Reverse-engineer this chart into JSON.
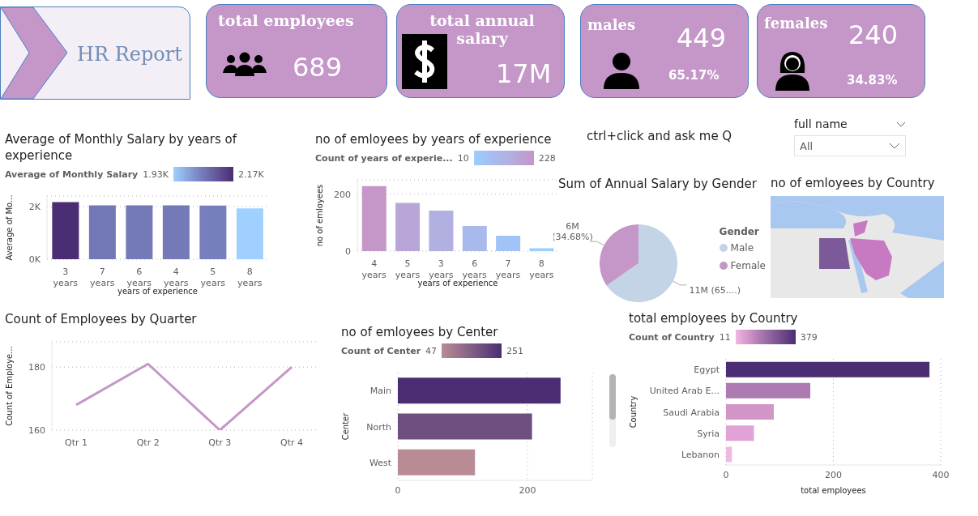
{
  "chart_data": [
    {
      "type": "other",
      "title": "HR Report",
      "annotations": [
        "total employees",
        "689",
        "total annual salary",
        "17M",
        "males",
        "449",
        "65.17%",
        "females",
        "240",
        "34.83%"
      ]
    },
    {
      "type": "bar",
      "title": "Average of Monthly Salary by years of experience",
      "categories": [
        "3 years",
        "7 years",
        "6 years",
        "4 years",
        "5 years",
        "8 years"
      ],
      "values": [
        2170,
        2050,
        2050,
        2050,
        2040,
        1930
      ],
      "colors": [
        "#4b2d73",
        "#7278b6",
        "#7479b8",
        "#7479b8",
        "#767fbb",
        "#9fd0ff"
      ],
      "xlabel": "years of experience",
      "ylabel": "Average of Mo...",
      "ylim": [
        0,
        2400
      ],
      "yticks": [
        {
          "value": 0,
          "label": "0K"
        },
        {
          "value": 2000,
          "label": "2K"
        }
      ],
      "grid": "y",
      "clabel": "Average of Monthly Salary",
      "annotations": [
        "1.93K",
        "2.17K"
      ]
    },
    {
      "type": "bar",
      "title": "no of emloyees by years of experience",
      "categories": [
        "4 years",
        "5 years",
        "3 years",
        "6 years",
        "7 years",
        "8 years"
      ],
      "values": [
        228,
        169,
        142,
        88,
        54,
        10
      ],
      "colors": [
        "#c497c8",
        "#b9a6d8",
        "#b1b0e0",
        "#aab9ec",
        "#a2c3f5",
        "#9ccefe"
      ],
      "xlabel": "years of experience",
      "ylabel": "no of emloyees",
      "ylim": [
        0,
        250
      ],
      "yticks": [
        0,
        200
      ],
      "grid": "y",
      "clabel": "Count of years of experie...",
      "annotations": [
        "10",
        "228"
      ]
    },
    {
      "type": "other",
      "title": "ctrl+click and ask me Q"
    },
    {
      "type": "other",
      "title": "full name",
      "annotations": [
        "All"
      ]
    },
    {
      "type": "pie",
      "title": "Sum of Annual Salary by Gender",
      "categories": [
        "Male",
        "Female"
      ],
      "values": [
        65.32,
        34.68
      ],
      "colors": [
        "#c2d4e6",
        "#c497c8"
      ],
      "value_labels": [
        "11M (65....)",
        "6M (34.68%)"
      ],
      "legend_title": "Gender",
      "legend": "right"
    },
    {
      "type": "other",
      "title": "no of emloyees by Country"
    },
    {
      "type": "line",
      "title": "Count of Employees by Quarter",
      "categories": [
        "Qtr 1",
        "Qtr 2",
        "Qtr 3",
        "Qtr 4"
      ],
      "series": [
        {
          "color": "#c497c8",
          "values": [
            168,
            181,
            160,
            180
          ]
        }
      ],
      "ylabel": "Count of Employe...",
      "ylim": [
        160,
        188
      ],
      "yticks": [
        160,
        180
      ],
      "grid": "y",
      "marker": "none",
      "line_style": "solid"
    },
    {
      "type": "bar",
      "orientation": "horizontal",
      "title": "no of emloyees by Center",
      "categories": [
        "Main",
        "North",
        "West"
      ],
      "values": [
        251,
        207,
        119
      ],
      "colors": [
        "#4b2d73",
        "#6f4f80",
        "#b98c95"
      ],
      "ylabel": "Center",
      "xlim": [
        0,
        300
      ],
      "xticks": [
        0,
        200
      ],
      "grid": "x",
      "clabel": "Count of Center",
      "annotations": [
        "47",
        "251"
      ]
    },
    {
      "type": "bar",
      "orientation": "horizontal",
      "title": "total employees by Country",
      "categories": [
        "Egypt",
        "United Arab E...",
        "Saudi Arabia",
        "Syria",
        "Lebanon"
      ],
      "values": [
        379,
        157,
        89,
        52,
        11
      ],
      "colors": [
        "#4b2d73",
        "#ad7bb1",
        "#d195c8",
        "#e1a3d6",
        "#f0b9df"
      ],
      "xlabel": "total employees",
      "ylabel": "Country",
      "xlim": [
        0,
        400
      ],
      "xticks": [
        0,
        200,
        400
      ],
      "grid": "x",
      "clabel": "Count of Country",
      "annotations": [
        "11",
        "379"
      ]
    }
  ]
}
